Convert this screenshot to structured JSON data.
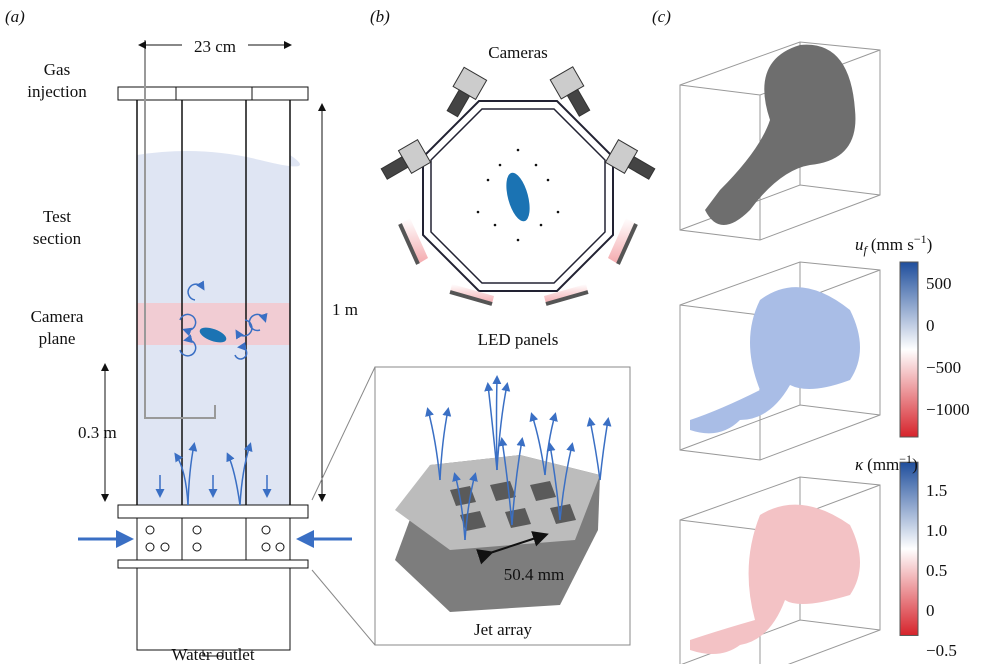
{
  "panels": {
    "a": {
      "label": "(a)",
      "width": "23 cm",
      "gas": [
        "Gas",
        "injection"
      ],
      "test": [
        "Test",
        "section"
      ],
      "camera": [
        "Camera",
        "plane"
      ],
      "height": "1 m",
      "depth": "0.3 m",
      "outlet": "Water outlet"
    },
    "b": {
      "label": "(b)",
      "cameras": "Cameras",
      "led": "LED panels",
      "spacing": "50.4 mm",
      "jet": "Jet array"
    },
    "c": {
      "label": "(c)",
      "bar1": {
        "symbol": "u",
        "sub": "f",
        "unit": "(mm s",
        "exp": "−1",
        "close": ")",
        "ticks": [
          "500",
          "0",
          "−500",
          "−1000"
        ]
      },
      "bar2": {
        "symbol": "κ",
        "unit": "(mm",
        "exp": "−1",
        "close": ")",
        "ticks": [
          "1.5",
          "1.0",
          "0.5",
          "0",
          "−0.5"
        ]
      }
    }
  }
}
